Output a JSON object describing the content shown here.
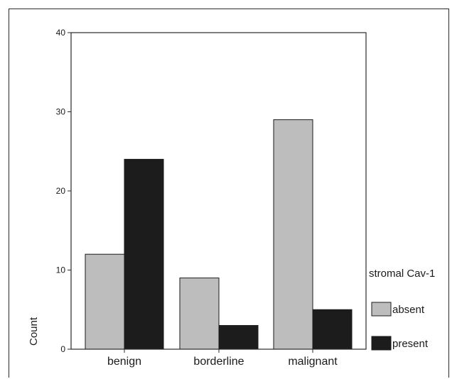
{
  "chart_data": {
    "type": "bar",
    "categories": [
      "benign",
      "borderline",
      "malignant"
    ],
    "series": [
      {
        "name": "absent",
        "values": [
          12,
          9,
          29
        ],
        "color": "#bdbdbd"
      },
      {
        "name": "present",
        "values": [
          24,
          3,
          5
        ],
        "color": "#1c1c1c"
      }
    ],
    "ylabel": "Count",
    "xlabel": "",
    "title": "",
    "ylim": [
      0,
      40
    ],
    "yticks": [
      "0",
      "10",
      "20",
      "30",
      "40"
    ],
    "legend_title": "stromal Cav-1",
    "legend_placement": "right",
    "grid": false
  }
}
